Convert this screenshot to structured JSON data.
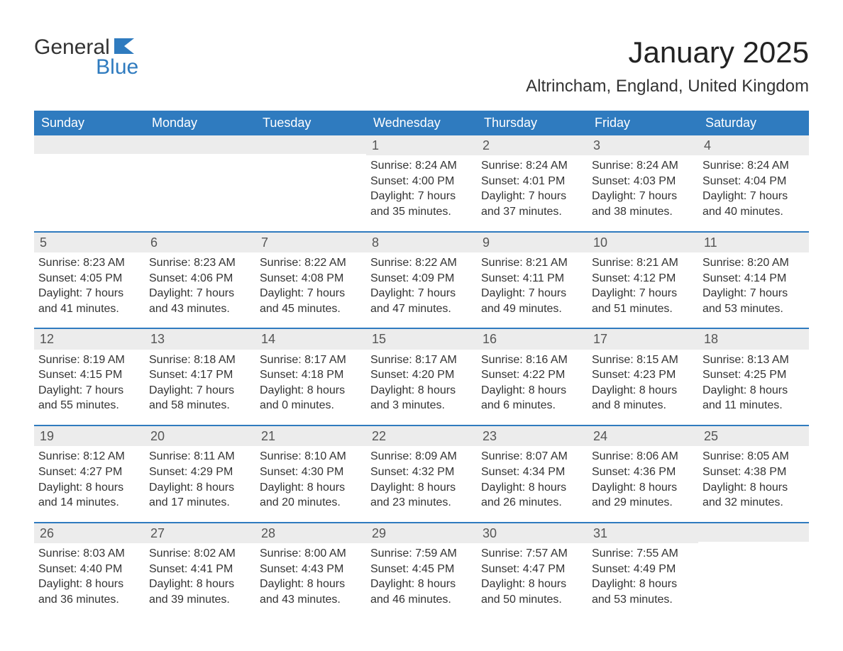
{
  "brand": {
    "general": "General",
    "blue": "Blue"
  },
  "title": "January 2025",
  "location": "Altrincham, England, United Kingdom",
  "colors": {
    "brand_blue": "#2f7bbf",
    "header_bg": "#2f7bbf",
    "header_text": "#ffffff",
    "date_bg": "#ececec",
    "text": "#333333",
    "background": "#ffffff"
  },
  "typography": {
    "title_fontsize": 42,
    "location_fontsize": 24,
    "dayheader_fontsize": 18,
    "cell_fontsize": 16
  },
  "day_names": [
    "Sunday",
    "Monday",
    "Tuesday",
    "Wednesday",
    "Thursday",
    "Friday",
    "Saturday"
  ],
  "weeks": [
    [
      {
        "date": "",
        "lines": []
      },
      {
        "date": "",
        "lines": []
      },
      {
        "date": "",
        "lines": []
      },
      {
        "date": "1",
        "lines": [
          "Sunrise: 8:24 AM",
          "Sunset: 4:00 PM",
          "Daylight: 7 hours and 35 minutes."
        ]
      },
      {
        "date": "2",
        "lines": [
          "Sunrise: 8:24 AM",
          "Sunset: 4:01 PM",
          "Daylight: 7 hours and 37 minutes."
        ]
      },
      {
        "date": "3",
        "lines": [
          "Sunrise: 8:24 AM",
          "Sunset: 4:03 PM",
          "Daylight: 7 hours and 38 minutes."
        ]
      },
      {
        "date": "4",
        "lines": [
          "Sunrise: 8:24 AM",
          "Sunset: 4:04 PM",
          "Daylight: 7 hours and 40 minutes."
        ]
      }
    ],
    [
      {
        "date": "5",
        "lines": [
          "Sunrise: 8:23 AM",
          "Sunset: 4:05 PM",
          "Daylight: 7 hours and 41 minutes."
        ]
      },
      {
        "date": "6",
        "lines": [
          "Sunrise: 8:23 AM",
          "Sunset: 4:06 PM",
          "Daylight: 7 hours and 43 minutes."
        ]
      },
      {
        "date": "7",
        "lines": [
          "Sunrise: 8:22 AM",
          "Sunset: 4:08 PM",
          "Daylight: 7 hours and 45 minutes."
        ]
      },
      {
        "date": "8",
        "lines": [
          "Sunrise: 8:22 AM",
          "Sunset: 4:09 PM",
          "Daylight: 7 hours and 47 minutes."
        ]
      },
      {
        "date": "9",
        "lines": [
          "Sunrise: 8:21 AM",
          "Sunset: 4:11 PM",
          "Daylight: 7 hours and 49 minutes."
        ]
      },
      {
        "date": "10",
        "lines": [
          "Sunrise: 8:21 AM",
          "Sunset: 4:12 PM",
          "Daylight: 7 hours and 51 minutes."
        ]
      },
      {
        "date": "11",
        "lines": [
          "Sunrise: 8:20 AM",
          "Sunset: 4:14 PM",
          "Daylight: 7 hours and 53 minutes."
        ]
      }
    ],
    [
      {
        "date": "12",
        "lines": [
          "Sunrise: 8:19 AM",
          "Sunset: 4:15 PM",
          "Daylight: 7 hours and 55 minutes."
        ]
      },
      {
        "date": "13",
        "lines": [
          "Sunrise: 8:18 AM",
          "Sunset: 4:17 PM",
          "Daylight: 7 hours and 58 minutes."
        ]
      },
      {
        "date": "14",
        "lines": [
          "Sunrise: 8:17 AM",
          "Sunset: 4:18 PM",
          "Daylight: 8 hours and 0 minutes."
        ]
      },
      {
        "date": "15",
        "lines": [
          "Sunrise: 8:17 AM",
          "Sunset: 4:20 PM",
          "Daylight: 8 hours and 3 minutes."
        ]
      },
      {
        "date": "16",
        "lines": [
          "Sunrise: 8:16 AM",
          "Sunset: 4:22 PM",
          "Daylight: 8 hours and 6 minutes."
        ]
      },
      {
        "date": "17",
        "lines": [
          "Sunrise: 8:15 AM",
          "Sunset: 4:23 PM",
          "Daylight: 8 hours and 8 minutes."
        ]
      },
      {
        "date": "18",
        "lines": [
          "Sunrise: 8:13 AM",
          "Sunset: 4:25 PM",
          "Daylight: 8 hours and 11 minutes."
        ]
      }
    ],
    [
      {
        "date": "19",
        "lines": [
          "Sunrise: 8:12 AM",
          "Sunset: 4:27 PM",
          "Daylight: 8 hours and 14 minutes."
        ]
      },
      {
        "date": "20",
        "lines": [
          "Sunrise: 8:11 AM",
          "Sunset: 4:29 PM",
          "Daylight: 8 hours and 17 minutes."
        ]
      },
      {
        "date": "21",
        "lines": [
          "Sunrise: 8:10 AM",
          "Sunset: 4:30 PM",
          "Daylight: 8 hours and 20 minutes."
        ]
      },
      {
        "date": "22",
        "lines": [
          "Sunrise: 8:09 AM",
          "Sunset: 4:32 PM",
          "Daylight: 8 hours and 23 minutes."
        ]
      },
      {
        "date": "23",
        "lines": [
          "Sunrise: 8:07 AM",
          "Sunset: 4:34 PM",
          "Daylight: 8 hours and 26 minutes."
        ]
      },
      {
        "date": "24",
        "lines": [
          "Sunrise: 8:06 AM",
          "Sunset: 4:36 PM",
          "Daylight: 8 hours and 29 minutes."
        ]
      },
      {
        "date": "25",
        "lines": [
          "Sunrise: 8:05 AM",
          "Sunset: 4:38 PM",
          "Daylight: 8 hours and 32 minutes."
        ]
      }
    ],
    [
      {
        "date": "26",
        "lines": [
          "Sunrise: 8:03 AM",
          "Sunset: 4:40 PM",
          "Daylight: 8 hours and 36 minutes."
        ]
      },
      {
        "date": "27",
        "lines": [
          "Sunrise: 8:02 AM",
          "Sunset: 4:41 PM",
          "Daylight: 8 hours and 39 minutes."
        ]
      },
      {
        "date": "28",
        "lines": [
          "Sunrise: 8:00 AM",
          "Sunset: 4:43 PM",
          "Daylight: 8 hours and 43 minutes."
        ]
      },
      {
        "date": "29",
        "lines": [
          "Sunrise: 7:59 AM",
          "Sunset: 4:45 PM",
          "Daylight: 8 hours and 46 minutes."
        ]
      },
      {
        "date": "30",
        "lines": [
          "Sunrise: 7:57 AM",
          "Sunset: 4:47 PM",
          "Daylight: 8 hours and 50 minutes."
        ]
      },
      {
        "date": "31",
        "lines": [
          "Sunrise: 7:55 AM",
          "Sunset: 4:49 PM",
          "Daylight: 8 hours and 53 minutes."
        ]
      },
      {
        "date": "",
        "lines": []
      }
    ]
  ]
}
